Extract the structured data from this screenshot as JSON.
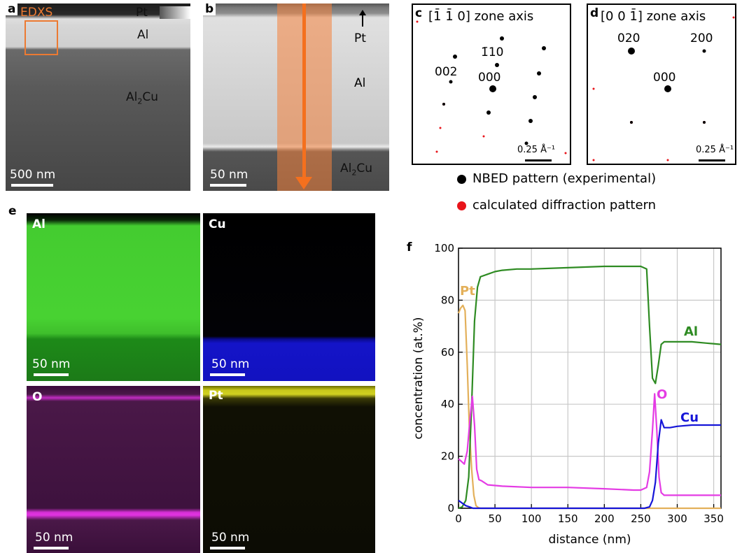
{
  "panels": {
    "a": {
      "letter": "a",
      "labels": {
        "edxs": "EDXS",
        "pt": "Pt",
        "al": "Al",
        "al2cu_main": "Al",
        "al2cu_sub": "2",
        "al2cu_tail": "Cu"
      },
      "scale": "500 nm"
    },
    "b": {
      "letter": "b",
      "labels": {
        "pt": "Pt",
        "al": "Al",
        "al2cu_main": "Al",
        "al2cu_sub": "2",
        "al2cu_tail": "Cu"
      },
      "scale": "50 nm"
    },
    "c": {
      "letter": "c",
      "zone_axis": "[1̄ 1̄ 0] zone axis",
      "spots": {
        "s1": "1̄10",
        "s2": "002",
        "s3": "000"
      },
      "scale": "0.25 Å⁻¹"
    },
    "d": {
      "letter": "d",
      "zone_axis": "[0 0 1̄] zone axis",
      "spots": {
        "s1": "020",
        "s2": "200",
        "s3": "000"
      },
      "scale": "0.25 Å⁻¹"
    },
    "e": {
      "letter": "e",
      "maps": [
        {
          "element": "Al",
          "scale": "50 nm"
        },
        {
          "element": "Cu",
          "scale": "50 nm"
        },
        {
          "element": "O",
          "scale": "50 nm"
        },
        {
          "element": "Pt",
          "scale": "50 nm"
        }
      ]
    },
    "f": {
      "letter": "f"
    }
  },
  "legend": {
    "exp": "NBED pattern (experimental)",
    "calc": "calculated diffraction pattern",
    "exp_color": "#000000",
    "calc_color": "#e8141a"
  },
  "chart_data": {
    "type": "line",
    "xlabel": "distance (nm)",
    "ylabel": "concentration (at.%)",
    "xlim": [
      0,
      360
    ],
    "ylim": [
      0,
      100
    ],
    "xticks": [
      0,
      50,
      100,
      150,
      200,
      250,
      300,
      350
    ],
    "yticks": [
      0,
      20,
      40,
      60,
      80,
      100
    ],
    "grid": true,
    "series": [
      {
        "name": "Pt",
        "color": "#e3b05a",
        "x": [
          0,
          3,
          6,
          9,
          12,
          15,
          18,
          21,
          24,
          27,
          30,
          40,
          60,
          100,
          200,
          300,
          360
        ],
        "y": [
          75,
          77,
          78,
          76,
          55,
          30,
          15,
          5,
          1,
          0.3,
          0,
          0,
          0,
          0,
          0,
          0,
          0
        ]
      },
      {
        "name": "Al",
        "color": "#2e8b22",
        "x": [
          0,
          5,
          10,
          14,
          18,
          22,
          26,
          30,
          40,
          50,
          60,
          80,
          100,
          150,
          200,
          240,
          250,
          258,
          262,
          266,
          270,
          274,
          278,
          282,
          290,
          300,
          320,
          340,
          360
        ],
        "y": [
          0,
          0.5,
          3,
          12,
          40,
          72,
          85,
          89,
          90,
          91,
          91.5,
          92,
          92,
          92.5,
          93,
          93,
          93,
          92,
          70,
          50,
          48,
          55,
          63,
          64,
          64,
          64,
          64,
          63.5,
          63
        ]
      },
      {
        "name": "O",
        "color": "#e43be4",
        "x": [
          0,
          4,
          8,
          12,
          16,
          19,
          22,
          25,
          28,
          32,
          40,
          60,
          100,
          150,
          200,
          240,
          250,
          258,
          262,
          266,
          269,
          272,
          275,
          278,
          282,
          290,
          300,
          330,
          360
        ],
        "y": [
          19,
          18,
          17,
          22,
          35,
          43,
          32,
          15,
          11,
          10.5,
          9,
          8.5,
          8,
          8,
          7.5,
          7,
          7,
          8,
          14,
          30,
          44,
          30,
          12,
          6,
          5,
          5,
          5,
          5,
          5
        ]
      },
      {
        "name": "Cu",
        "color": "#1515d8",
        "x": [
          0,
          5,
          10,
          15,
          20,
          30,
          50,
          100,
          200,
          255,
          262,
          266,
          270,
          274,
          278,
          282,
          290,
          300,
          320,
          340,
          360
        ],
        "y": [
          3,
          2,
          1,
          0.5,
          0,
          0,
          0,
          0,
          0,
          0,
          0.5,
          3,
          10,
          25,
          34,
          31,
          31,
          31.5,
          32,
          32,
          32
        ]
      }
    ]
  }
}
